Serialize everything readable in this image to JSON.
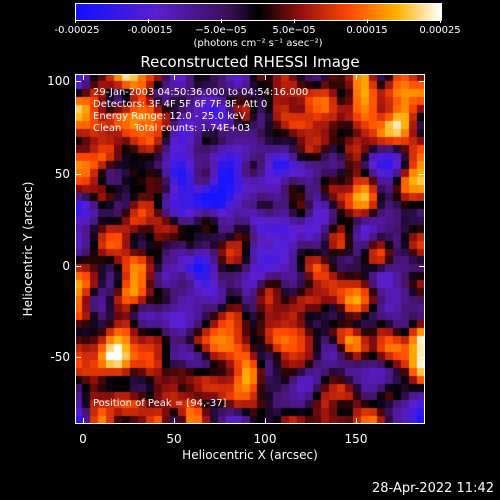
{
  "colorbar": {
    "tick_labels": [
      "-0.00025",
      "-0.00015",
      "−5.0e−05",
      "5.0e−05",
      "0.00015",
      "0.00025"
    ],
    "units": "(photons cm⁻² s⁻¹ asec⁻²)",
    "range": [
      -0.00025,
      0.00025
    ]
  },
  "title": "Reconstructed RHESSI Image",
  "info": {
    "time_range": "29-Jan-2003 04:50:36.000 to 04:54:16.000",
    "detectors": "Detectors: 3F 4F 5F 6F 7F 8F, Att 0",
    "energy": "Energy Range: 12.0 - 25.0 keV",
    "algorithm": "Clean    Total counts: 1.74E+03",
    "peak": "Position of Peak = [94,-37]"
  },
  "axes": {
    "xlabel": "Heliocentric X (arcsec)",
    "ylabel": "Heliocentric Y (arcsec)",
    "xticks": [
      "0",
      "50",
      "100",
      "150"
    ],
    "yticks": [
      "100",
      "50",
      "0",
      "-50"
    ],
    "xrange": [
      -4,
      188
    ],
    "yrange": [
      -88,
      104
    ]
  },
  "datestamp": "28-Apr-2022 11:42",
  "colors": {
    "low": "#1a1aff",
    "mid": "#000000",
    "high": "#ffffff"
  }
}
